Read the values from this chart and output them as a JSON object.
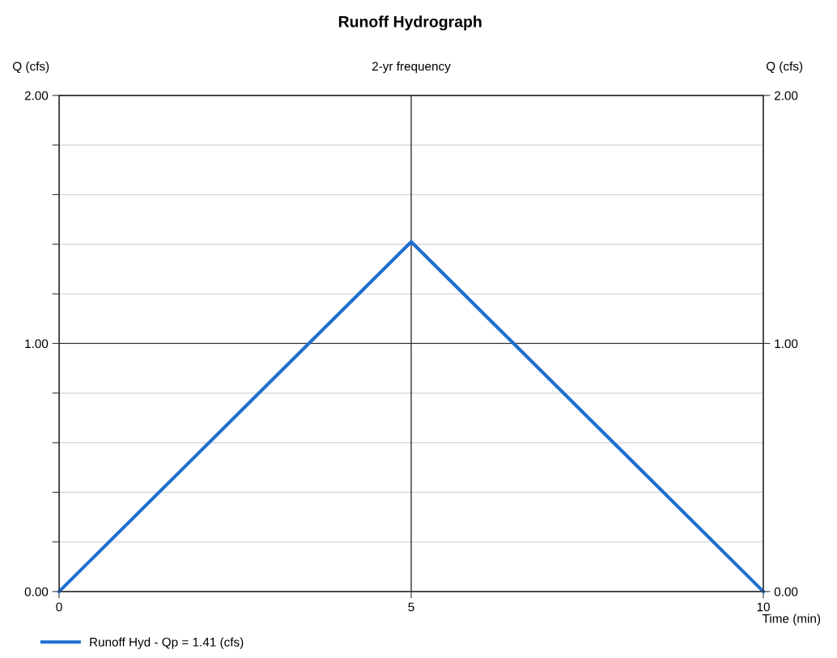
{
  "chart_data": {
    "type": "line",
    "title": "Runoff Hydrograph",
    "subtitle": "2-yr frequency",
    "xlabel": "Time (min)",
    "ylabel": "Q (cfs)",
    "y2label": "Q (cfs)",
    "x": [
      0,
      5,
      10
    ],
    "series": [
      {
        "name": "Runoff Hyd - Qp = 1.41 (cfs)",
        "color": "#1f6fd0",
        "values": [
          0,
          1.41,
          0
        ]
      }
    ],
    "xlim": [
      0,
      10
    ],
    "xticks": [
      0,
      5,
      10
    ],
    "ylim": [
      0,
      2
    ],
    "yticks": [
      {
        "value": 0,
        "label": "0.00"
      },
      {
        "value": 0.2,
        "label": null
      },
      {
        "value": 0.4,
        "label": null
      },
      {
        "value": 0.6,
        "label": null
      },
      {
        "value": 0.8,
        "label": null
      },
      {
        "value": 1,
        "label": "1.00"
      },
      {
        "value": 1.2,
        "label": null
      },
      {
        "value": 1.4,
        "label": null
      },
      {
        "value": 1.6,
        "label": null
      },
      {
        "value": 1.8,
        "label": null
      },
      {
        "value": 2,
        "label": "2.00"
      }
    ],
    "y2lim": [
      0,
      2
    ],
    "y2ticks": [
      {
        "value": 0,
        "label": "0.00"
      },
      {
        "value": 1,
        "label": "1.00"
      },
      {
        "value": 2,
        "label": "2.00"
      }
    ],
    "grid": true,
    "legend": "bottom left",
    "line_style": "solid",
    "marker": "none"
  }
}
